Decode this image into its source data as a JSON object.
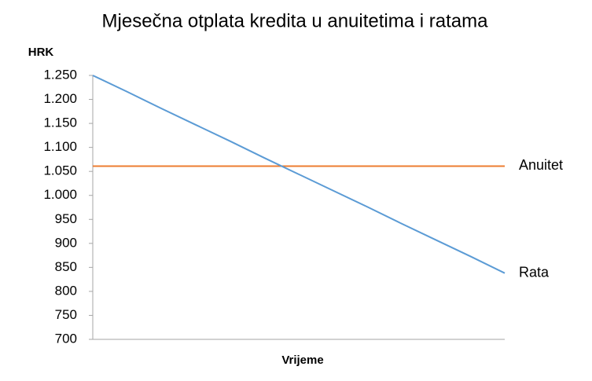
{
  "chart_data": {
    "type": "line",
    "title": "Mjesečna otplata kredita  u anuitetima i ratama",
    "y_label": "HRK",
    "x_label": "Vrijeme",
    "categories": [
      null,
      null,
      null,
      null,
      null,
      null,
      null,
      null,
      null,
      null,
      null,
      null,
      null
    ],
    "series": [
      {
        "name": "Anuitet",
        "color": "#ed7d31",
        "values": [
          1061,
          1061,
          1061,
          1061,
          1061,
          1061,
          1061,
          1061,
          1061,
          1061,
          1061,
          1061,
          1061
        ]
      },
      {
        "name": "Rata",
        "color": "#5b9bd5",
        "values": [
          1250,
          1216,
          1181,
          1147,
          1113,
          1078,
          1044,
          1010,
          976,
          941,
          907,
          873,
          838
        ]
      }
    ],
    "ylim": [
      700,
      1250
    ],
    "yticks": [
      700,
      750,
      800,
      850,
      900,
      950,
      {
        "value": 1000,
        "label": "1.000"
      },
      {
        "value": 1050,
        "label": "1.050"
      },
      {
        "value": 1100,
        "label": "1.100"
      },
      {
        "value": 1150,
        "label": "1.150"
      },
      {
        "value": 1200,
        "label": "1.200"
      },
      {
        "value": 1250,
        "label": "1.250"
      }
    ],
    "grid": false,
    "legend": "right"
  }
}
